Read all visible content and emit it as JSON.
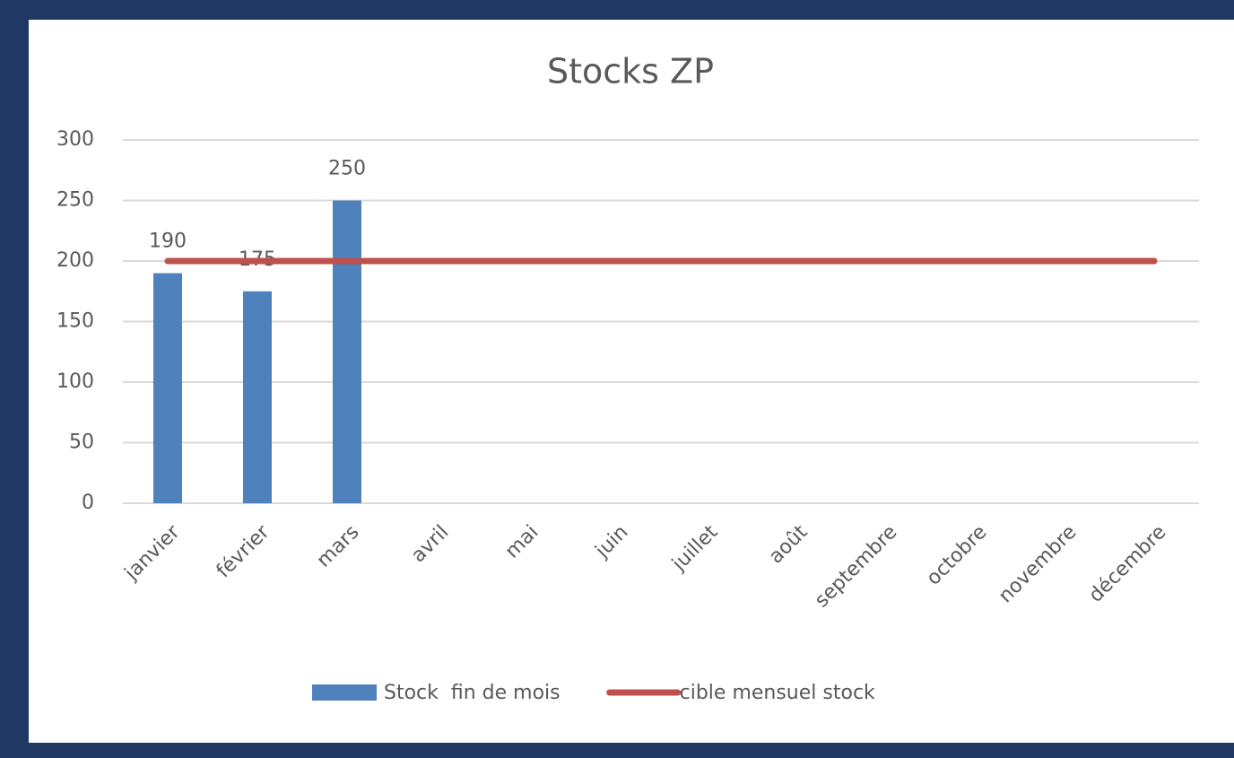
{
  "chart_data": {
    "type": "bar",
    "title": "Stocks ZP",
    "categories": [
      "janvier",
      "février",
      "mars",
      "avril",
      "mai",
      "juin",
      "juillet",
      "août",
      "septembre",
      "octobre",
      "novembre",
      "décembre"
    ],
    "series": [
      {
        "name": "Stock  fin de mois",
        "type": "bar",
        "color": "#4f81bd",
        "values": [
          190,
          175,
          250,
          null,
          null,
          null,
          null,
          null,
          null,
          null,
          null,
          null
        ],
        "data_labels": true
      },
      {
        "name": "cible mensuel stock",
        "type": "line",
        "color": "#c0504d",
        "values": [
          200,
          200,
          200,
          200,
          200,
          200,
          200,
          200,
          200,
          200,
          200,
          200
        ]
      }
    ],
    "ylim": [
      0,
      300
    ],
    "yticks": [
      0,
      50,
      100,
      150,
      200,
      250,
      300
    ],
    "grid": true,
    "legend": "bottom"
  }
}
